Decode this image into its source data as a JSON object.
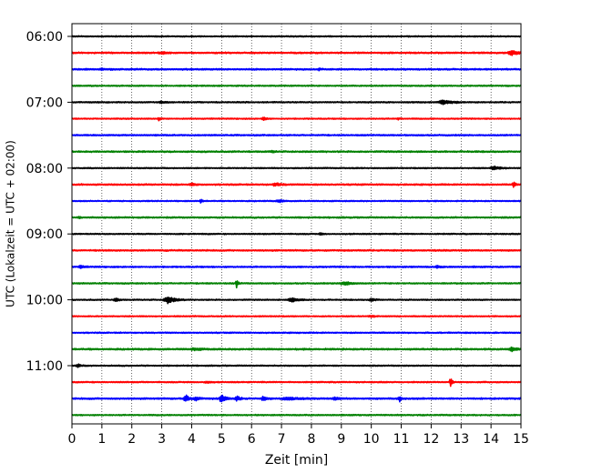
{
  "chart_data": {
    "type": "line",
    "title": "",
    "xlabel": "Zeit  [min]",
    "ylabel": "UTC (Lokalzeit = UTC + 02:00)",
    "xlim": [
      0,
      15
    ],
    "x_ticks": [
      0,
      1,
      2,
      3,
      4,
      5,
      6,
      7,
      8,
      9,
      10,
      11,
      12,
      13,
      14,
      15
    ],
    "grid": "vertical dotted",
    "row_interval_minutes": 15,
    "rows_start": "06:00",
    "hour_labels": [
      {
        "label": "06:00",
        "row": 0
      },
      {
        "label": "07:00",
        "row": 4
      },
      {
        "label": "08:00",
        "row": 8
      },
      {
        "label": "09:00",
        "row": 12
      },
      {
        "label": "10:00",
        "row": 16
      },
      {
        "label": "11:00",
        "row": 20
      }
    ],
    "color_cycle": [
      "#000000",
      "#ff0000",
      "#0000ff",
      "#008000"
    ],
    "traces": [
      {
        "start": "06:00",
        "base_amp": 0.55,
        "events": []
      },
      {
        "start": "06:15",
        "base_amp": 0.7,
        "events": [
          {
            "t": 14.7,
            "amp": 2.2,
            "dur": 0.6
          },
          {
            "t": 3.0,
            "amp": 0.9,
            "dur": 0.5
          }
        ]
      },
      {
        "start": "06:30",
        "base_amp": 0.7,
        "events": [
          {
            "t": 8.25,
            "amp": 2.0,
            "dur": 0.15
          },
          {
            "t": 1.0,
            "amp": 0.7,
            "dur": 0.5
          }
        ]
      },
      {
        "start": "06:45",
        "base_amp": 0.6,
        "events": []
      },
      {
        "start": "07:00",
        "base_amp": 0.6,
        "events": [
          {
            "t": 12.4,
            "amp": 2.2,
            "dur": 0.7
          },
          {
            "t": 3.0,
            "amp": 1.0,
            "dur": 0.4
          }
        ]
      },
      {
        "start": "07:15",
        "base_amp": 0.55,
        "events": [
          {
            "t": 2.9,
            "amp": 1.9,
            "dur": 0.15
          },
          {
            "t": 6.4,
            "amp": 1.4,
            "dur": 0.3
          },
          {
            "t": 10.9,
            "amp": 1.0,
            "dur": 0.15
          }
        ]
      },
      {
        "start": "07:30",
        "base_amp": 0.65,
        "events": []
      },
      {
        "start": "07:45",
        "base_amp": 0.7,
        "events": [
          {
            "t": 6.7,
            "amp": 1.0,
            "dur": 0.2
          }
        ]
      },
      {
        "start": "08:00",
        "base_amp": 0.55,
        "events": [
          {
            "t": 14.1,
            "amp": 2.0,
            "dur": 0.5
          }
        ]
      },
      {
        "start": "08:15",
        "base_amp": 0.7,
        "events": [
          {
            "t": 6.8,
            "amp": 1.5,
            "dur": 0.5
          },
          {
            "t": 4.0,
            "amp": 1.2,
            "dur": 0.3
          },
          {
            "t": 14.75,
            "amp": 2.8,
            "dur": 0.15
          }
        ]
      },
      {
        "start": "08:30",
        "base_amp": 0.55,
        "events": [
          {
            "t": 4.3,
            "amp": 2.8,
            "dur": 0.12
          },
          {
            "t": 6.9,
            "amp": 1.4,
            "dur": 0.4
          }
        ]
      },
      {
        "start": "08:45",
        "base_amp": 0.65,
        "events": [
          {
            "t": 0.25,
            "amp": 1.5,
            "dur": 0.15
          }
        ]
      },
      {
        "start": "09:00",
        "base_amp": 0.55,
        "events": [
          {
            "t": 8.3,
            "amp": 1.4,
            "dur": 0.2
          }
        ]
      },
      {
        "start": "09:15",
        "base_amp": 0.7,
        "events": []
      },
      {
        "start": "09:30",
        "base_amp": 0.7,
        "events": [
          {
            "t": 0.3,
            "amp": 1.2,
            "dur": 0.3
          },
          {
            "t": 12.2,
            "amp": 1.0,
            "dur": 0.3
          }
        ]
      },
      {
        "start": "09:45",
        "base_amp": 0.6,
        "events": [
          {
            "t": 5.5,
            "amp": 5.5,
            "dur": 0.12
          },
          {
            "t": 9.1,
            "amp": 2.0,
            "dur": 0.6
          }
        ]
      },
      {
        "start": "10:00",
        "base_amp": 0.55,
        "events": [
          {
            "t": 1.45,
            "amp": 1.8,
            "dur": 0.3
          },
          {
            "t": 3.2,
            "amp": 4.0,
            "dur": 0.6
          },
          {
            "t": 7.35,
            "amp": 2.5,
            "dur": 0.5
          },
          {
            "t": 10.0,
            "amp": 1.4,
            "dur": 0.4
          }
        ]
      },
      {
        "start": "10:15",
        "base_amp": 0.55,
        "events": [
          {
            "t": 10.0,
            "amp": 0.9,
            "dur": 0.3
          }
        ]
      },
      {
        "start": "10:30",
        "base_amp": 0.6,
        "events": []
      },
      {
        "start": "10:45",
        "base_amp": 0.75,
        "events": [
          {
            "t": 4.1,
            "amp": 1.0,
            "dur": 0.6
          },
          {
            "t": 14.7,
            "amp": 2.2,
            "dur": 0.4
          }
        ]
      },
      {
        "start": "11:00",
        "base_amp": 0.55,
        "events": [
          {
            "t": 0.2,
            "amp": 1.8,
            "dur": 0.3
          }
        ]
      },
      {
        "start": "11:15",
        "base_amp": 0.6,
        "events": [
          {
            "t": 12.65,
            "amp": 5.5,
            "dur": 0.15
          },
          {
            "t": 4.5,
            "amp": 1.0,
            "dur": 0.3
          }
        ]
      },
      {
        "start": "11:30",
        "base_amp": 0.75,
        "events": [
          {
            "t": 3.8,
            "amp": 4.0,
            "dur": 0.3
          },
          {
            "t": 4.15,
            "amp": 2.0,
            "dur": 0.3
          },
          {
            "t": 5.0,
            "amp": 5.0,
            "dur": 0.3
          },
          {
            "t": 5.5,
            "amp": 2.4,
            "dur": 0.3
          },
          {
            "t": 6.4,
            "amp": 2.4,
            "dur": 0.3
          },
          {
            "t": 7.2,
            "amp": 1.5,
            "dur": 0.8
          },
          {
            "t": 8.8,
            "amp": 1.2,
            "dur": 0.4
          },
          {
            "t": 10.95,
            "amp": 3.5,
            "dur": 0.12
          }
        ]
      },
      {
        "start": "11:45",
        "base_amp": 0.6,
        "events": []
      }
    ]
  }
}
